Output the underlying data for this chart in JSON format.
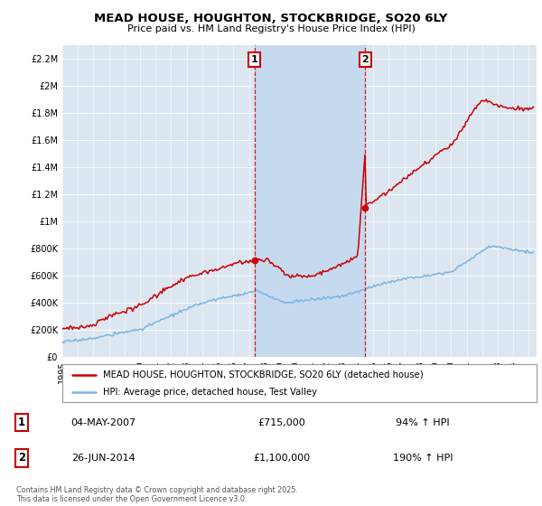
{
  "title": "MEAD HOUSE, HOUGHTON, STOCKBRIDGE, SO20 6LY",
  "subtitle": "Price paid vs. HM Land Registry's House Price Index (HPI)",
  "legend_line1": "MEAD HOUSE, HOUGHTON, STOCKBRIDGE, SO20 6LY (detached house)",
  "legend_line2": "HPI: Average price, detached house, Test Valley",
  "transaction1_date": "04-MAY-2007",
  "transaction1_price": "£715,000",
  "transaction1_hpi": "94% ↑ HPI",
  "transaction2_date": "26-JUN-2014",
  "transaction2_price": "£1,100,000",
  "transaction2_hpi": "190% ↑ HPI",
  "footer": "Contains HM Land Registry data © Crown copyright and database right 2025.\nThis data is licensed under the Open Government Licence v3.0.",
  "red_color": "#cc0000",
  "blue_color": "#7bb5e0",
  "highlight_color": "#c5d9ef",
  "background_chart": "#dce6f1",
  "vline_color": "#cc0000",
  "ylim_max": 2300000,
  "ylim_min": 0,
  "transaction1_year": 2007.35,
  "transaction2_year": 2014.48
}
